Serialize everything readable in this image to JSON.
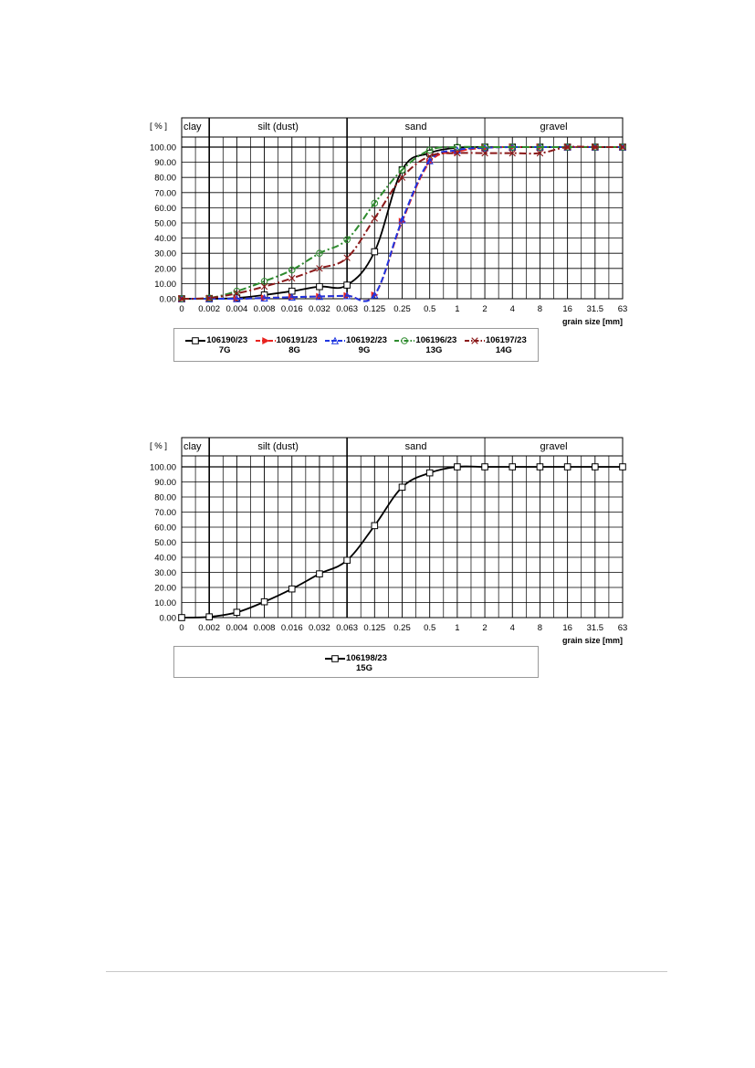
{
  "chart_data": [
    {
      "type": "line",
      "y_unit_label": "[ % ]",
      "x_unit_label": "grain size [mm]",
      "xlabel_ticks": [
        "0",
        "0.002",
        "0.004",
        "0.008",
        "0.016",
        "0.032",
        "0.063",
        "0.125",
        "0.25",
        "0.5",
        "1",
        "2",
        "4",
        "8",
        "16",
        "31.5",
        "63"
      ],
      "ylabel_ticks": [
        "0.00",
        "10.00",
        "20.00",
        "30.00",
        "40.00",
        "50.00",
        "60.00",
        "70.00",
        "80.00",
        "90.00",
        "100.00"
      ],
      "ylim": [
        0,
        100
      ],
      "zones": [
        {
          "label": "clay",
          "from": 0,
          "to": 1
        },
        {
          "label": "silt (dust)",
          "from": 1,
          "to": 6
        },
        {
          "label": "sand",
          "from": 6,
          "to": 11
        },
        {
          "label": "gravel",
          "from": 11,
          "to": 16
        }
      ],
      "grid": true,
      "legend_position": "bottom",
      "series": [
        {
          "name": "106190/23",
          "sub": "7G",
          "color": "#000000",
          "style": "solid",
          "marker": "square",
          "values": [
            0,
            0,
            0.5,
            2.5,
            5,
            8,
            9,
            31,
            85,
            96,
            99.5,
            100,
            100,
            100,
            100,
            100,
            100
          ]
        },
        {
          "name": "106191/23",
          "sub": "8G",
          "color": "#e8231f",
          "style": "dashed",
          "marker": "arrow",
          "values": [
            0,
            0,
            0,
            0.5,
            1,
            1.5,
            2,
            2.5,
            51,
            90,
            97,
            99.5,
            100,
            100,
            100,
            100,
            100
          ]
        },
        {
          "name": "106192/23",
          "sub": "9G",
          "color": "#1f36e0",
          "style": "dashed",
          "marker": "triangle",
          "values": [
            0,
            0,
            0,
            0.5,
            1,
            1.5,
            2,
            2.5,
            52,
            91,
            98,
            99.5,
            100,
            100,
            100,
            100,
            100
          ]
        },
        {
          "name": "106196/23",
          "sub": "13G",
          "color": "#2e8b2e",
          "style": "dashdot",
          "marker": "circle",
          "values": [
            0,
            0.5,
            5,
            11.5,
            19,
            30,
            39,
            63,
            85,
            98,
            100,
            100,
            100,
            100,
            100,
            100,
            100
          ]
        },
        {
          "name": "106197/23",
          "sub": "14G",
          "color": "#8b1a1a",
          "style": "dashdot",
          "marker": "x",
          "values": [
            0,
            0.5,
            3.5,
            8,
            13.5,
            20,
            27,
            53,
            80,
            94,
            96,
            96,
            96,
            96,
            100,
            100,
            100
          ]
        }
      ]
    },
    {
      "type": "line",
      "y_unit_label": "[ % ]",
      "x_unit_label": "grain size [mm]",
      "xlabel_ticks": [
        "0",
        "0.002",
        "0.004",
        "0.008",
        "0.016",
        "0.032",
        "0.063",
        "0.125",
        "0.25",
        "0.5",
        "1",
        "2",
        "4",
        "8",
        "16",
        "31.5",
        "63"
      ],
      "ylabel_ticks": [
        "0.00",
        "10.00",
        "20.00",
        "30.00",
        "40.00",
        "50.00",
        "60.00",
        "70.00",
        "80.00",
        "90.00",
        "100.00"
      ],
      "ylim": [
        0,
        100
      ],
      "zones": [
        {
          "label": "clay",
          "from": 0,
          "to": 1
        },
        {
          "label": "silt (dust)",
          "from": 1,
          "to": 6
        },
        {
          "label": "sand",
          "from": 6,
          "to": 11
        },
        {
          "label": "gravel",
          "from": 11,
          "to": 16
        }
      ],
      "grid": true,
      "legend_position": "bottom",
      "series": [
        {
          "name": "106198/23",
          "sub": "15G",
          "color": "#000000",
          "style": "solid",
          "marker": "square",
          "values": [
            0,
            0.5,
            3.5,
            10.5,
            19,
            29,
            38,
            61,
            86.5,
            96,
            100,
            100,
            100,
            100,
            100,
            100,
            100
          ]
        }
      ]
    }
  ]
}
